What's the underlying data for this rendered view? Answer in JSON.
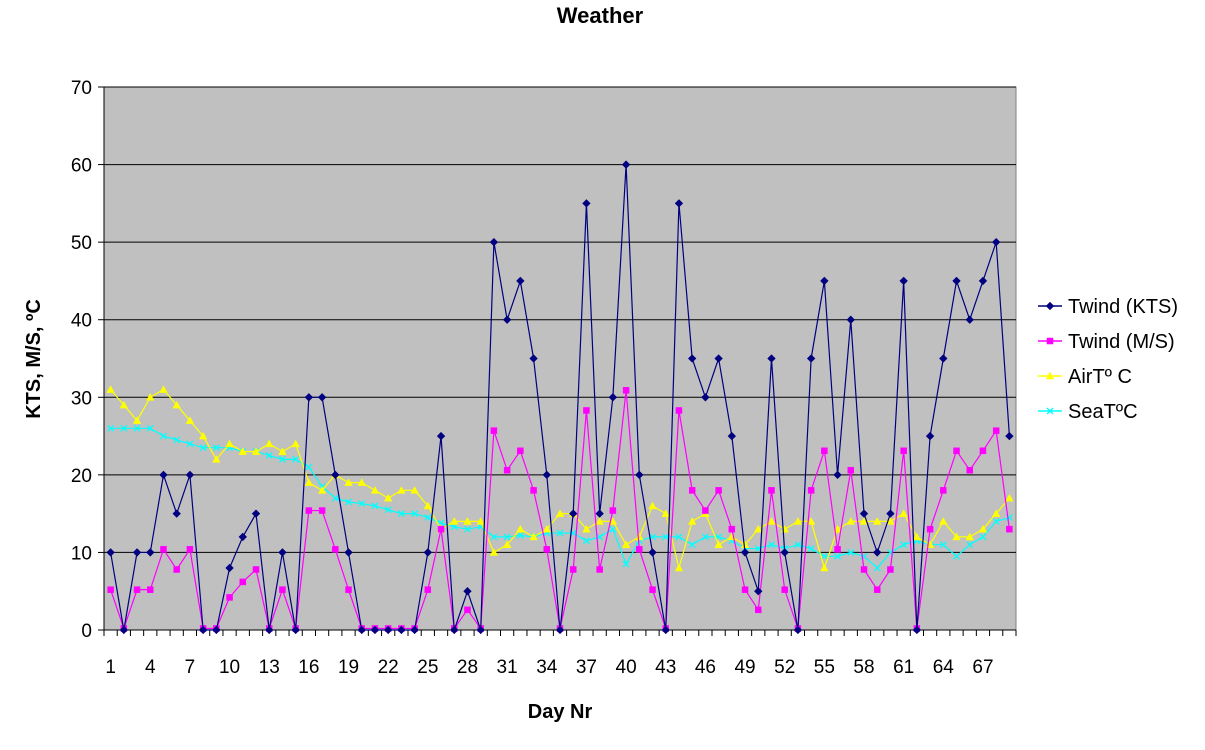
{
  "chart_data": {
    "type": "line",
    "title": "Weather",
    "xlabel": "Day Nr",
    "ylabel": "KTS, M/S, ºC",
    "ylim": [
      0,
      70
    ],
    "yticks": [
      0,
      10,
      20,
      30,
      40,
      50,
      60,
      70
    ],
    "x": [
      1,
      2,
      3,
      4,
      5,
      6,
      7,
      8,
      9,
      10,
      11,
      12,
      13,
      14,
      15,
      16,
      17,
      18,
      19,
      20,
      21,
      22,
      23,
      24,
      25,
      26,
      27,
      28,
      29,
      30,
      31,
      32,
      33,
      34,
      35,
      36,
      37,
      38,
      39,
      40,
      41,
      42,
      43,
      44,
      45,
      46,
      47,
      48,
      49,
      50,
      51,
      52,
      53,
      54,
      55,
      56,
      57,
      58,
      59,
      60,
      61,
      62,
      63,
      64,
      65,
      66,
      67,
      68,
      69
    ],
    "xtick_labels": [
      "1",
      "4",
      "7",
      "10",
      "13",
      "16",
      "19",
      "22",
      "25",
      "28",
      "31",
      "34",
      "37",
      "40",
      "43",
      "46",
      "49",
      "52",
      "55",
      "58",
      "61",
      "64",
      "67"
    ],
    "grid": "horizontal",
    "legend": "right",
    "plot_background": "#c0c0c0",
    "series": [
      {
        "name": "Twind (KTS)",
        "color": "#000080",
        "marker": "diamond",
        "values": [
          10,
          0,
          10,
          10,
          20,
          15,
          20,
          0,
          0,
          8,
          12,
          15,
          0,
          10,
          0,
          30,
          30,
          20,
          10,
          0,
          0,
          0,
          0,
          0,
          10,
          25,
          0,
          5,
          0,
          50,
          40,
          45,
          35,
          20,
          0,
          15,
          55,
          15,
          30,
          60,
          20,
          10,
          0,
          55,
          35,
          30,
          35,
          25,
          10,
          5,
          35,
          10,
          0,
          35,
          45,
          20,
          40,
          15,
          10,
          15,
          45,
          0,
          25,
          35,
          45,
          40,
          45,
          50,
          25
        ]
      },
      {
        "name": "Twind (M/S)",
        "color": "#ff00ff",
        "marker": "square",
        "values": [
          5.2,
          0.2,
          5.2,
          5.2,
          10.4,
          7.8,
          10.4,
          0.2,
          0.2,
          4.2,
          6.2,
          7.8,
          0.2,
          5.2,
          0.2,
          15.4,
          15.4,
          10.4,
          5.2,
          0.2,
          0.2,
          0.2,
          0.2,
          0.2,
          5.2,
          13,
          0.2,
          2.6,
          0.2,
          25.7,
          20.6,
          23.1,
          18,
          10.4,
          0.2,
          7.8,
          28.3,
          7.8,
          15.4,
          30.9,
          10.4,
          5.2,
          0.2,
          28.3,
          18,
          15.4,
          18,
          13,
          5.2,
          2.6,
          18,
          5.2,
          0.2,
          18,
          23.1,
          10.4,
          20.6,
          7.8,
          5.2,
          7.8,
          23.1,
          0.2,
          13,
          18,
          23.1,
          20.6,
          23.1,
          25.7,
          13
        ]
      },
      {
        "name": "AirTº C",
        "color": "#ffff00",
        "marker": "triangle",
        "values": [
          31,
          29,
          27,
          30,
          31,
          29,
          27,
          25,
          22,
          24,
          23,
          23,
          24,
          23,
          24,
          19,
          18,
          20,
          19,
          19,
          18,
          17,
          18,
          18,
          16,
          13,
          14,
          14,
          14,
          10,
          11,
          13,
          12,
          13,
          15,
          15,
          13,
          14,
          14,
          11,
          12,
          16,
          15,
          8,
          14,
          15,
          11,
          12,
          11,
          13,
          14,
          13,
          14,
          14,
          8,
          13,
          14,
          14,
          14,
          14,
          15,
          12,
          11,
          14,
          12,
          12,
          13,
          15,
          17
        ]
      },
      {
        "name": "SeaTºC",
        "color": "#00ffff",
        "marker": "x",
        "values": [
          26,
          26,
          26,
          26,
          25,
          24.5,
          24,
          23.5,
          23.5,
          23.5,
          23,
          23,
          22.5,
          22,
          22,
          21,
          18.5,
          17,
          16.5,
          16.3,
          16,
          15.5,
          15,
          15,
          14.5,
          13.8,
          13.3,
          13,
          13.3,
          12,
          12,
          12.2,
          12,
          12.5,
          12.5,
          12.5,
          11.5,
          12,
          13,
          8.5,
          11.5,
          12,
          12,
          12,
          11,
          12,
          12,
          11.5,
          10.5,
          10.5,
          11,
          10.5,
          11,
          10.5,
          9.5,
          9.5,
          10,
          9.5,
          8,
          10,
          11,
          11.5,
          11,
          11,
          9.5,
          11,
          12,
          14,
          14.5
        ]
      }
    ]
  }
}
